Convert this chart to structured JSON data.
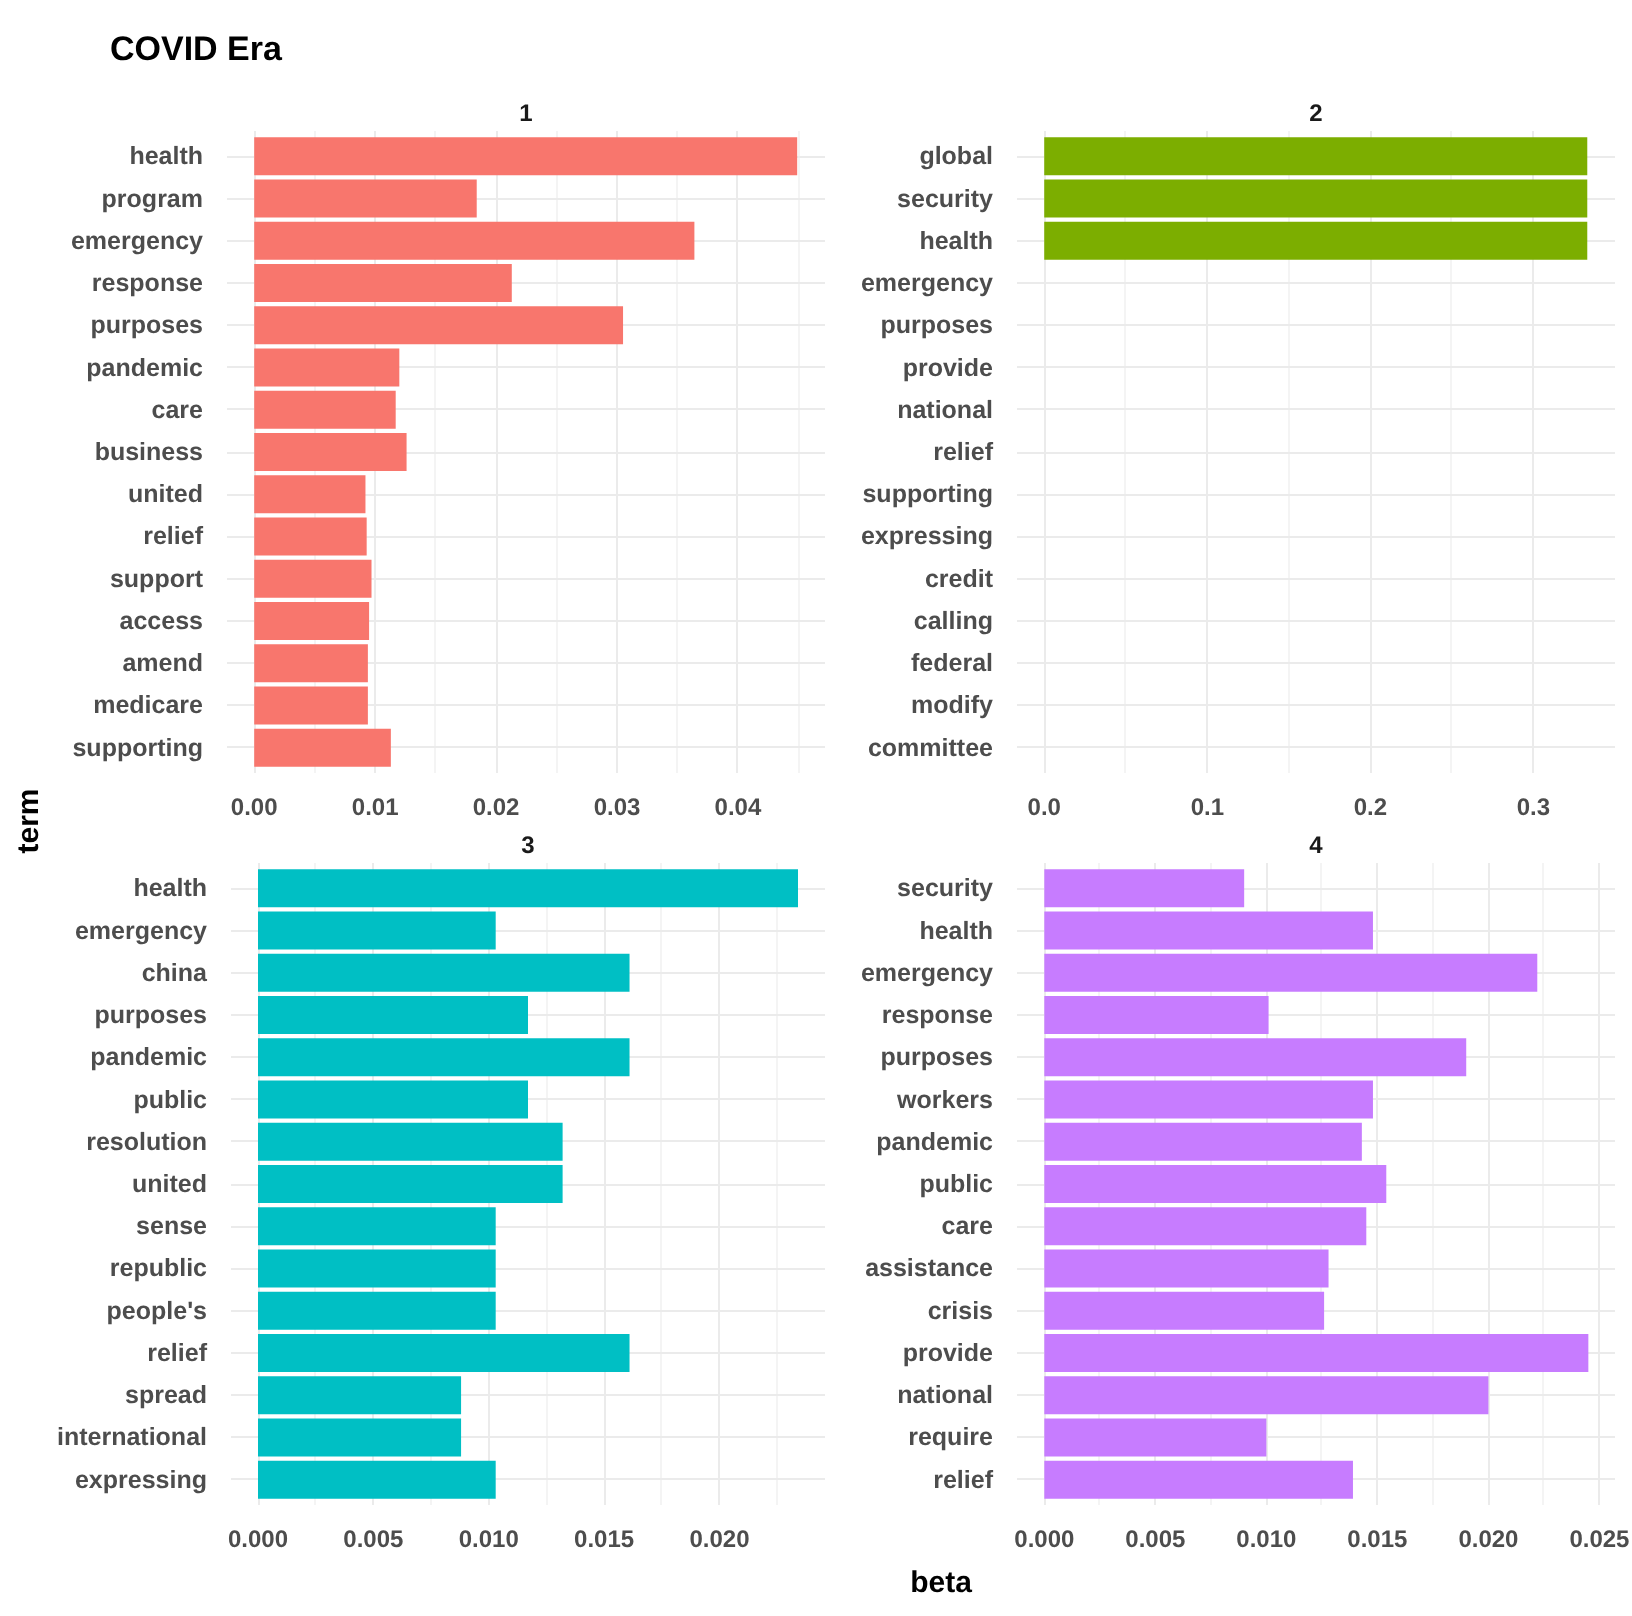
{
  "chart_data": [
    {
      "type": "bar",
      "orientation": "horizontal",
      "title": "COVID Era",
      "subtitle": "1",
      "ylabel": "term",
      "categories": [
        "health",
        "program",
        "emergency",
        "response",
        "purposes",
        "pandemic",
        "care",
        "business",
        "united",
        "relief",
        "support",
        "access",
        "amend",
        "medicare",
        "supporting"
      ],
      "values": [
        0.0449,
        0.0184,
        0.0364,
        0.0213,
        0.0305,
        0.012,
        0.0117,
        0.0126,
        0.0092,
        0.0093,
        0.0097,
        0.0095,
        0.0094,
        0.0094,
        0.0113
      ],
      "color": "#f8766d",
      "xlim": [
        -0.00225,
        0.0472
      ],
      "xticks": [
        {
          "value": 0,
          "label": "0.00"
        },
        0.01,
        0.02,
        0.03,
        0.04
      ],
      "grid": true
    },
    {
      "type": "bar",
      "orientation": "horizontal",
      "subtitle": "2",
      "categories": [
        "global",
        "security",
        "health",
        "emergency",
        "purposes",
        "provide",
        "national",
        "relief",
        "supporting",
        "expressing",
        "credit",
        "calling",
        "federal",
        "modify",
        "committee"
      ],
      "values": [
        0.333,
        0.333,
        0.333,
        0,
        0,
        0,
        0,
        0,
        0,
        0,
        0,
        0,
        0,
        0,
        0
      ],
      "color": "#7cae00",
      "xlim": [
        -0.0167,
        0.35
      ],
      "xticks": [
        {
          "value": 0,
          "label": "0.0"
        },
        0.1,
        0.2,
        0.3
      ],
      "grid": true
    },
    {
      "type": "bar",
      "orientation": "horizontal",
      "subtitle": "3",
      "xlabel": "beta",
      "categories": [
        "health",
        "emergency",
        "china",
        "purposes",
        "pandemic",
        "public",
        "resolution",
        "united",
        "sense",
        "republic",
        "people's",
        "relief",
        "spread",
        "international",
        "expressing"
      ],
      "values": [
        0.0234,
        0.0103,
        0.0161,
        0.0117,
        0.0161,
        0.0117,
        0.0132,
        0.0132,
        0.0103,
        0.0103,
        0.0103,
        0.0161,
        0.0088,
        0.0088,
        0.0103
      ],
      "color": "#00bfc4",
      "xlim": [
        -0.00117,
        0.02457
      ],
      "xticks": [
        {
          "value": 0,
          "label": "0.000"
        },
        0.005,
        {
          "value": 0.01,
          "label": "0.010"
        },
        0.015,
        {
          "value": 0.02,
          "label": "0.020"
        }
      ],
      "grid": true
    },
    {
      "type": "bar",
      "orientation": "horizontal",
      "subtitle": "4",
      "categories": [
        "security",
        "health",
        "emergency",
        "response",
        "purposes",
        "workers",
        "pandemic",
        "public",
        "care",
        "assistance",
        "crisis",
        "provide",
        "national",
        "require",
        "relief"
      ],
      "values": [
        0.009,
        0.0148,
        0.0222,
        0.0101,
        0.019,
        0.0148,
        0.0143,
        0.0154,
        0.0145,
        0.0128,
        0.0126,
        0.0245,
        0.02,
        0.01,
        0.0139
      ],
      "color": "#c77cff",
      "xlim": [
        -0.00123,
        0.0257
      ],
      "xticks": [
        {
          "value": 0,
          "label": "0.000"
        },
        0.005,
        {
          "value": 0.01,
          "label": "0.010"
        },
        0.015,
        {
          "value": 0.02,
          "label": "0.020"
        },
        0.025
      ],
      "grid": true
    }
  ]
}
